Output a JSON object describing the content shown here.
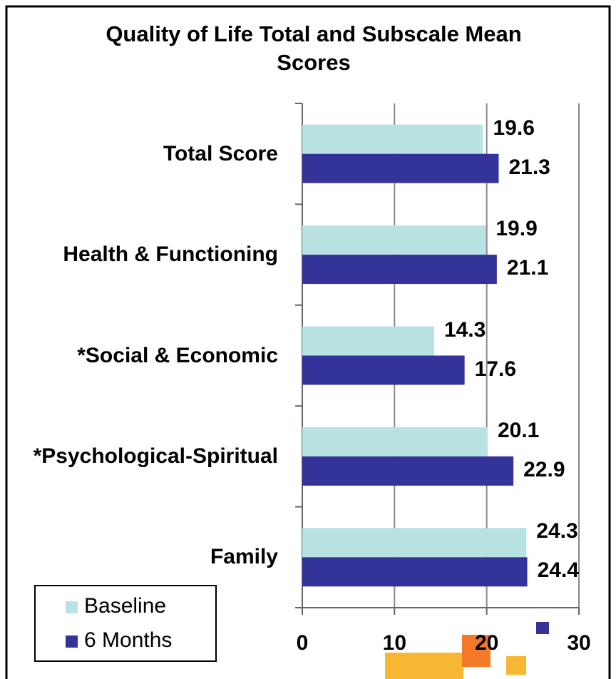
{
  "chart_data": {
    "type": "bar",
    "orientation": "horizontal",
    "title": "Quality of Life Total and Subscale Mean Scores",
    "categories": [
      "Total Score",
      "Health & Functioning",
      "*Social & Economic",
      "*Psychological-Spiritual",
      "Family"
    ],
    "series": [
      {
        "name": "Baseline",
        "color": "#b9e3e3",
        "values": [
          19.6,
          19.9,
          14.3,
          20.1,
          24.3
        ]
      },
      {
        "name": "6 Months",
        "color": "#333399",
        "values": [
          21.3,
          21.1,
          17.6,
          22.9,
          24.4
        ]
      }
    ],
    "xlim": [
      0,
      30
    ],
    "xticks": [
      0,
      10,
      20,
      30
    ],
    "grid": true,
    "legend": "lower left"
  }
}
